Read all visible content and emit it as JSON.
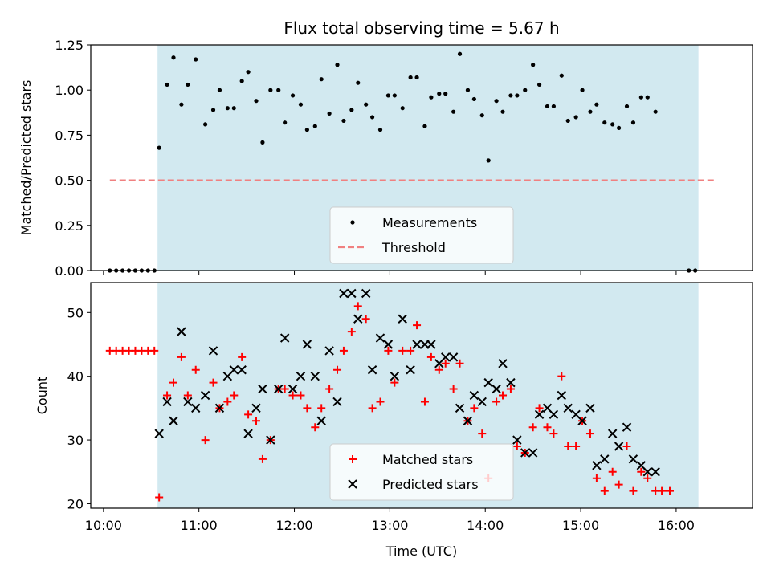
{
  "chart_data": [
    {
      "type": "scatter",
      "title": "Flux total observing time = 5.67 h",
      "xlabel": "",
      "ylabel": "Matched/Predicted stars",
      "xlim": [
        "09:52",
        "16:48"
      ],
      "ylim": [
        0,
        1.25
      ],
      "yticks": [
        "0.00",
        "0.25",
        "0.50",
        "0.75",
        "1.00",
        "1.25"
      ],
      "shaded_interval": [
        "10:34",
        "16:14"
      ],
      "shade_color": "#d2e9f0",
      "legend": {
        "placement": "lower-center",
        "entries": [
          "Measurements",
          "Threshold"
        ]
      },
      "series": [
        {
          "name": "Measurements",
          "marker": "dot",
          "color": "#000000",
          "points": [
            [
              "10:04",
              0.0
            ],
            [
              "10:08",
              0.0
            ],
            [
              "10:12",
              0.0
            ],
            [
              "10:16",
              0.0
            ],
            [
              "10:20",
              0.0
            ],
            [
              "10:24",
              0.0
            ],
            [
              "10:28",
              0.0
            ],
            [
              "10:32",
              0.0
            ],
            [
              "10:35",
              0.68
            ],
            [
              "10:40",
              1.03
            ],
            [
              "10:44",
              1.18
            ],
            [
              "10:49",
              0.92
            ],
            [
              "10:53",
              1.03
            ],
            [
              "10:58",
              1.17
            ],
            [
              "11:04",
              0.81
            ],
            [
              "11:09",
              0.89
            ],
            [
              "11:13",
              1.0
            ],
            [
              "11:18",
              0.9
            ],
            [
              "11:22",
              0.9
            ],
            [
              "11:27",
              1.05
            ],
            [
              "11:31",
              1.1
            ],
            [
              "11:36",
              0.94
            ],
            [
              "11:40",
              0.71
            ],
            [
              "11:45",
              1.0
            ],
            [
              "11:50",
              1.0
            ],
            [
              "11:54",
              0.82
            ],
            [
              "11:59",
              0.97
            ],
            [
              "12:04",
              0.92
            ],
            [
              "12:08",
              0.78
            ],
            [
              "12:13",
              0.8
            ],
            [
              "12:17",
              1.06
            ],
            [
              "12:22",
              0.87
            ],
            [
              "12:27",
              1.14
            ],
            [
              "12:31",
              0.83
            ],
            [
              "12:36",
              0.89
            ],
            [
              "12:40",
              1.04
            ],
            [
              "12:45",
              0.92
            ],
            [
              "12:49",
              0.85
            ],
            [
              "12:54",
              0.78
            ],
            [
              "12:59",
              0.97
            ],
            [
              "13:03",
              0.97
            ],
            [
              "13:08",
              0.9
            ],
            [
              "13:13",
              1.07
            ],
            [
              "13:17",
              1.07
            ],
            [
              "13:22",
              0.8
            ],
            [
              "13:26",
              0.96
            ],
            [
              "13:31",
              0.98
            ],
            [
              "13:35",
              0.98
            ],
            [
              "13:40",
              0.88
            ],
            [
              "13:44",
              1.2
            ],
            [
              "13:49",
              1.0
            ],
            [
              "13:53",
              0.95
            ],
            [
              "13:58",
              0.86
            ],
            [
              "14:02",
              0.61
            ],
            [
              "14:07",
              0.94
            ],
            [
              "14:11",
              0.88
            ],
            [
              "14:16",
              0.97
            ],
            [
              "14:20",
              0.97
            ],
            [
              "14:25",
              1.0
            ],
            [
              "14:30",
              1.14
            ],
            [
              "14:34",
              1.03
            ],
            [
              "14:39",
              0.91
            ],
            [
              "14:43",
              0.91
            ],
            [
              "14:48",
              1.08
            ],
            [
              "14:52",
              0.83
            ],
            [
              "14:57",
              0.85
            ],
            [
              "15:01",
              1.0
            ],
            [
              "15:06",
              0.88
            ],
            [
              "15:10",
              0.92
            ],
            [
              "15:15",
              0.82
            ],
            [
              "15:20",
              0.81
            ],
            [
              "15:24",
              0.79
            ],
            [
              "15:29",
              0.91
            ],
            [
              "15:33",
              0.82
            ],
            [
              "15:38",
              0.96
            ],
            [
              "15:42",
              0.96
            ],
            [
              "15:47",
              0.88
            ],
            [
              "16:08",
              0.0
            ],
            [
              "16:12",
              0.0
            ]
          ]
        },
        {
          "name": "Threshold",
          "type": "dashed-line",
          "color": "#f08080",
          "x": [
            "10:04",
            "16:24"
          ],
          "y": [
            0.5,
            0.5
          ]
        }
      ]
    },
    {
      "type": "scatter",
      "title": "",
      "xlabel": "Time (UTC)",
      "ylabel": "Count",
      "xlim": [
        "09:52",
        "16:48"
      ],
      "ylim": [
        19.3,
        54.7
      ],
      "yticks": [
        "20",
        "30",
        "40",
        "50"
      ],
      "xticks": [
        "10:00",
        "11:00",
        "12:00",
        "13:00",
        "14:00",
        "15:00",
        "16:00"
      ],
      "shaded_interval": [
        "10:34",
        "16:14"
      ],
      "shade_color": "#d2e9f0",
      "legend": {
        "placement": "lower-center",
        "entries": [
          "Matched stars",
          "Predicted stars"
        ]
      },
      "series": [
        {
          "name": "Matched stars",
          "marker": "plus",
          "color": "#ff0000",
          "points": [
            [
              "10:04",
              44
            ],
            [
              "10:08",
              44
            ],
            [
              "10:12",
              44
            ],
            [
              "10:16",
              44
            ],
            [
              "10:20",
              44
            ],
            [
              "10:24",
              44
            ],
            [
              "10:28",
              44
            ],
            [
              "10:32",
              44
            ],
            [
              "10:35",
              21
            ],
            [
              "10:40",
              37
            ],
            [
              "10:44",
              39
            ],
            [
              "10:49",
              43
            ],
            [
              "10:53",
              37
            ],
            [
              "10:58",
              41
            ],
            [
              "11:04",
              30
            ],
            [
              "11:09",
              39
            ],
            [
              "11:13",
              35
            ],
            [
              "11:18",
              36
            ],
            [
              "11:22",
              37
            ],
            [
              "11:27",
              43
            ],
            [
              "11:31",
              34
            ],
            [
              "11:36",
              33
            ],
            [
              "11:40",
              27
            ],
            [
              "11:45",
              30
            ],
            [
              "11:50",
              38
            ],
            [
              "11:54",
              38
            ],
            [
              "11:59",
              37
            ],
            [
              "12:04",
              37
            ],
            [
              "12:08",
              35
            ],
            [
              "12:13",
              32
            ],
            [
              "12:17",
              35
            ],
            [
              "12:22",
              38
            ],
            [
              "12:27",
              41
            ],
            [
              "12:31",
              44
            ],
            [
              "12:36",
              47
            ],
            [
              "12:40",
              51
            ],
            [
              "12:45",
              49
            ],
            [
              "12:49",
              35
            ],
            [
              "12:54",
              36
            ],
            [
              "12:59",
              44
            ],
            [
              "13:03",
              39
            ],
            [
              "13:08",
              44
            ],
            [
              "13:13",
              44
            ],
            [
              "13:17",
              48
            ],
            [
              "13:22",
              36
            ],
            [
              "13:26",
              43
            ],
            [
              "13:31",
              41
            ],
            [
              "13:35",
              42
            ],
            [
              "13:40",
              38
            ],
            [
              "13:44",
              42
            ],
            [
              "13:49",
              33
            ],
            [
              "13:53",
              35
            ],
            [
              "13:58",
              31
            ],
            [
              "14:02",
              24
            ],
            [
              "14:07",
              36
            ],
            [
              "14:11",
              37
            ],
            [
              "14:16",
              38
            ],
            [
              "14:20",
              29
            ],
            [
              "14:25",
              28
            ],
            [
              "14:30",
              32
            ],
            [
              "14:34",
              35
            ],
            [
              "14:39",
              32
            ],
            [
              "14:43",
              31
            ],
            [
              "14:48",
              40
            ],
            [
              "14:52",
              29
            ],
            [
              "14:57",
              29
            ],
            [
              "15:01",
              33
            ],
            [
              "15:06",
              31
            ],
            [
              "15:10",
              24
            ],
            [
              "15:15",
              22
            ],
            [
              "15:20",
              25
            ],
            [
              "15:24",
              23
            ],
            [
              "15:29",
              29
            ],
            [
              "15:33",
              22
            ],
            [
              "15:38",
              25
            ],
            [
              "15:42",
              24
            ],
            [
              "15:47",
              22
            ],
            [
              "15:51",
              22
            ],
            [
              "15:56",
              22
            ]
          ]
        },
        {
          "name": "Predicted stars",
          "marker": "x",
          "color": "#000000",
          "points": [
            [
              "10:35",
              31
            ],
            [
              "10:40",
              36
            ],
            [
              "10:44",
              33
            ],
            [
              "10:49",
              47
            ],
            [
              "10:53",
              36
            ],
            [
              "10:58",
              35
            ],
            [
              "11:04",
              37
            ],
            [
              "11:09",
              44
            ],
            [
              "11:13",
              35
            ],
            [
              "11:18",
              40
            ],
            [
              "11:22",
              41
            ],
            [
              "11:27",
              41
            ],
            [
              "11:31",
              31
            ],
            [
              "11:36",
              35
            ],
            [
              "11:40",
              38
            ],
            [
              "11:45",
              30
            ],
            [
              "11:50",
              38
            ],
            [
              "11:54",
              46
            ],
            [
              "11:59",
              38
            ],
            [
              "12:04",
              40
            ],
            [
              "12:08",
              45
            ],
            [
              "12:13",
              40
            ],
            [
              "12:17",
              33
            ],
            [
              "12:22",
              44
            ],
            [
              "12:27",
              36
            ],
            [
              "12:31",
              53
            ],
            [
              "12:36",
              53
            ],
            [
              "12:40",
              49
            ],
            [
              "12:45",
              53
            ],
            [
              "12:49",
              41
            ],
            [
              "12:54",
              46
            ],
            [
              "12:59",
              45
            ],
            [
              "13:03",
              40
            ],
            [
              "13:08",
              49
            ],
            [
              "13:13",
              41
            ],
            [
              "13:17",
              45
            ],
            [
              "13:22",
              45
            ],
            [
              "13:26",
              45
            ],
            [
              "13:31",
              42
            ],
            [
              "13:35",
              43
            ],
            [
              "13:40",
              43
            ],
            [
              "13:44",
              35
            ],
            [
              "13:49",
              33
            ],
            [
              "13:53",
              37
            ],
            [
              "13:58",
              36
            ],
            [
              "14:02",
              39
            ],
            [
              "14:07",
              38
            ],
            [
              "14:11",
              42
            ],
            [
              "14:16",
              39
            ],
            [
              "14:20",
              30
            ],
            [
              "14:25",
              28
            ],
            [
              "14:30",
              28
            ],
            [
              "14:34",
              34
            ],
            [
              "14:39",
              35
            ],
            [
              "14:43",
              34
            ],
            [
              "14:48",
              37
            ],
            [
              "14:52",
              35
            ],
            [
              "14:57",
              34
            ],
            [
              "15:01",
              33
            ],
            [
              "15:06",
              35
            ],
            [
              "15:10",
              26
            ],
            [
              "15:15",
              27
            ],
            [
              "15:20",
              31
            ],
            [
              "15:24",
              29
            ],
            [
              "15:29",
              32
            ],
            [
              "15:33",
              27
            ],
            [
              "15:38",
              26
            ],
            [
              "15:42",
              25
            ],
            [
              "15:47",
              25
            ]
          ]
        }
      ]
    }
  ]
}
